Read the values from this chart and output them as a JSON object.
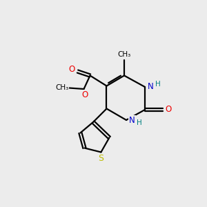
{
  "bg_color": "#ececec",
  "bond_color": "#000000",
  "N_color": "#0000cc",
  "O_color": "#ee0000",
  "S_color": "#bbbb00",
  "H_color": "#008080",
  "lw": 1.6,
  "figsize": [
    3.0,
    3.0
  ],
  "dpi": 100,
  "xlim": [
    0,
    10
  ],
  "ylim": [
    0,
    10
  ]
}
